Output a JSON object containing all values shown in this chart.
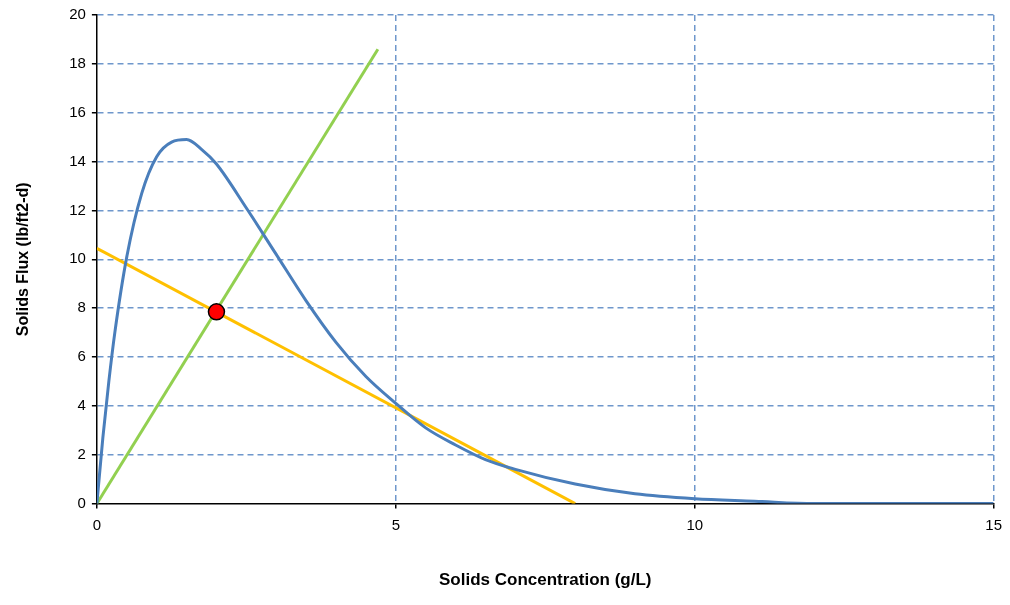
{
  "chart_data": {
    "type": "line",
    "xlabel": "Solids Concentration (g/L)",
    "ylabel": "Solids Flux (lb/ft2-d)",
    "xlim": [
      0,
      15
    ],
    "xticks": [
      0,
      5,
      10,
      15
    ],
    "ylim": [
      0,
      20
    ],
    "yticks": [
      0,
      2,
      4,
      6,
      8,
      10,
      12,
      14,
      16,
      18,
      20
    ],
    "grid": true,
    "line_style": "solid",
    "marker": "none",
    "series": [
      {
        "color": "#4a7ebb",
        "x": [
          0,
          0.1,
          0.2,
          0.3,
          0.5,
          0.75,
          1,
          1.25,
          1.5,
          1.75,
          2,
          2.5,
          3,
          3.5,
          4,
          4.5,
          5,
          5.5,
          6,
          6.5,
          7,
          8,
          9,
          10,
          11,
          12,
          13,
          14,
          15
        ],
        "values": [
          0,
          2.7,
          5.0,
          7.0,
          10.1,
          12.7,
          14.2,
          14.8,
          14.9,
          14.5,
          13.9,
          12.1,
          10.2,
          8.3,
          6.6,
          5.2,
          4.1,
          3.1,
          2.4,
          1.8,
          1.4,
          0.8,
          0.4,
          0.2,
          0.1,
          0,
          0,
          0,
          0
        ]
      },
      {
        "color": "#92d050",
        "x": [
          0,
          4.7
        ],
        "values": [
          0,
          18.6
        ]
      },
      {
        "color": "#ffc000",
        "x": [
          0,
          8
        ],
        "values": [
          10.45,
          0
        ]
      },
      {
        "type": "scatter",
        "color": "#ff0000",
        "marker": "circle",
        "x": [
          2
        ],
        "values": [
          7.85
        ]
      }
    ]
  }
}
